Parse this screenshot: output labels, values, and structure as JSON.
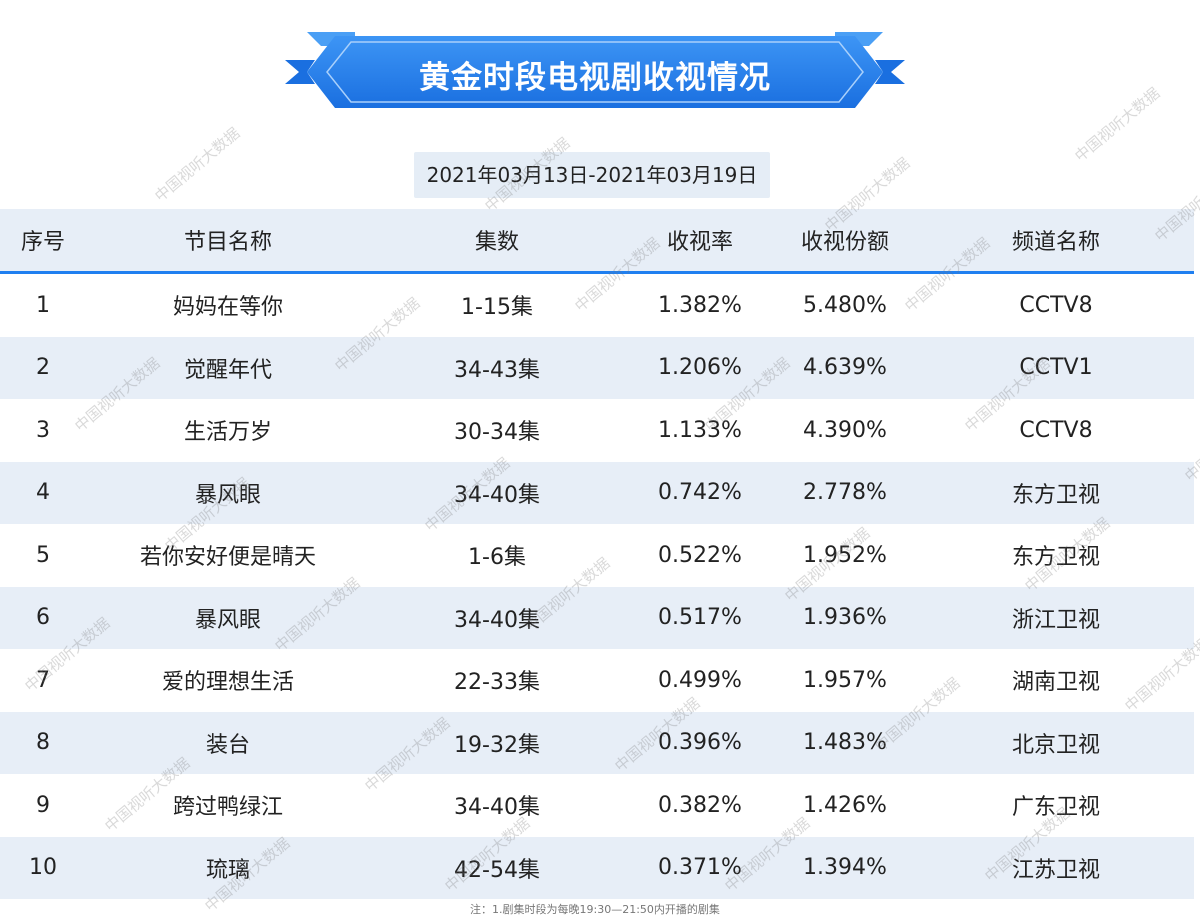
{
  "banner": {
    "title": "黄金时段电视剧收视情况"
  },
  "date_range": "2021年03月13日-2021年03月19日",
  "table": {
    "headers": {
      "rank": "序号",
      "name": "节目名称",
      "episodes": "集数",
      "rating": "收视率",
      "share": "收视份额",
      "channel": "频道名称"
    },
    "rows": [
      {
        "rank": "1",
        "name": "妈妈在等你",
        "episodes": "1-15集",
        "rating": "1.382%",
        "share": "5.480%",
        "channel": "CCTV8"
      },
      {
        "rank": "2",
        "name": "觉醒年代",
        "episodes": "34-43集",
        "rating": "1.206%",
        "share": "4.639%",
        "channel": "CCTV1"
      },
      {
        "rank": "3",
        "name": "生活万岁",
        "episodes": "30-34集",
        "rating": "1.133%",
        "share": "4.390%",
        "channel": "CCTV8"
      },
      {
        "rank": "4",
        "name": "暴风眼",
        "episodes": "34-40集",
        "rating": "0.742%",
        "share": "2.778%",
        "channel": "东方卫视"
      },
      {
        "rank": "5",
        "name": "若你安好便是晴天",
        "episodes": "1-6集",
        "rating": "0.522%",
        "share": "1.952%",
        "channel": "东方卫视"
      },
      {
        "rank": "6",
        "name": "暴风眼",
        "episodes": "34-40集",
        "rating": "0.517%",
        "share": "1.936%",
        "channel": "浙江卫视"
      },
      {
        "rank": "7",
        "name": "爱的理想生活",
        "episodes": "22-33集",
        "rating": "0.499%",
        "share": "1.957%",
        "channel": "湖南卫视"
      },
      {
        "rank": "8",
        "name": "装台",
        "episodes": "19-32集",
        "rating": "0.396%",
        "share": "1.483%",
        "channel": "北京卫视"
      },
      {
        "rank": "9",
        "name": "跨过鸭绿江",
        "episodes": "34-40集",
        "rating": "0.382%",
        "share": "1.426%",
        "channel": "广东卫视"
      },
      {
        "rank": "10",
        "name": "琉璃",
        "episodes": "42-54集",
        "rating": "0.371%",
        "share": "1.394%",
        "channel": "江苏卫视"
      }
    ]
  },
  "footnote": "注：1.剧集时段为每晚19:30—21:50内开播的剧集",
  "watermark": "中国视听大数据",
  "colors": {
    "banner_blue": "#1f7ff0",
    "row_stripe": "#e7eef7",
    "text": "#222222"
  }
}
